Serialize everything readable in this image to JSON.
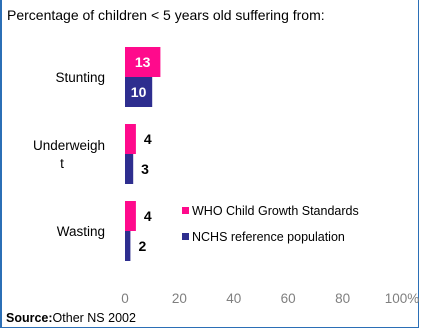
{
  "title": "Percentage of children < 5 years old suffering from:",
  "source": {
    "label": "Source:",
    "text": "Other NS 2002"
  },
  "chart_data": {
    "type": "bar",
    "orientation": "horizontal",
    "categories": [
      "Stunting",
      "Underweight",
      "Wasting"
    ],
    "category_display": [
      [
        "Stunting"
      ],
      [
        "Underweigh",
        "t"
      ],
      [
        "Wasting"
      ]
    ],
    "series": [
      {
        "name": "WHO Child Growth Standards",
        "values": [
          13,
          4,
          4
        ],
        "color": "#ff0a8c"
      },
      {
        "name": "NCHS reference population",
        "values": [
          10,
          3,
          2
        ],
        "color": "#2e2e8f"
      }
    ],
    "xlim": [
      0,
      100
    ],
    "xticks": [
      "0",
      "20",
      "40",
      "60",
      "80",
      "100%"
    ],
    "grid": false,
    "legend": "bottom-right"
  }
}
